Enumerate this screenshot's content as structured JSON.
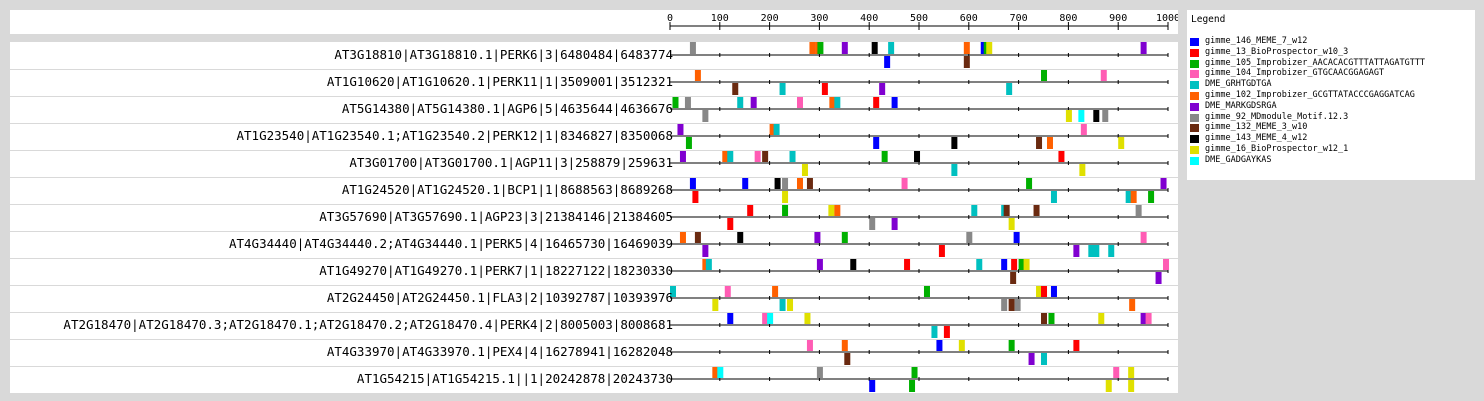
{
  "axis": {
    "min": 0,
    "max": 1000,
    "ticks": [
      0,
      100,
      200,
      300,
      400,
      500,
      600,
      700,
      800,
      900,
      1000
    ]
  },
  "legend": {
    "title": "Legend",
    "items": [
      {
        "name": "gimme_146_MEME_7_w12",
        "color": "#0000ff"
      },
      {
        "name": "gimme_13_BioProspector_w10_3",
        "color": "#ff0000"
      },
      {
        "name": "gimme_105_Improbizer_AACACACGTTTATTAGATGTTT",
        "color": "#00b000"
      },
      {
        "name": "gimme_104_Improbizer_GTGCAACGGAGAGT",
        "color": "#ff5cb4"
      },
      {
        "name": "DME_GRHTGDTGA",
        "color": "#00c0c0"
      },
      {
        "name": "gimme_102_Improbizer_GCGTTATACCCGAGGATCAG",
        "color": "#ff6000"
      },
      {
        "name": "DME_MARKGDSRGA",
        "color": "#8000d0"
      },
      {
        "name": "gimme_92_MDmodule_Motif.12.3",
        "color": "#888888"
      },
      {
        "name": "gimme_132_MEME_3_w10",
        "color": "#6a2a10"
      },
      {
        "name": "gimme_143_MEME_4_w12",
        "color": "#000000"
      },
      {
        "name": "gimme_16_BioProspector_w12_1",
        "color": "#e0e000"
      },
      {
        "name": "DME_GADGAYKAS",
        "color": "#00ffff"
      }
    ]
  },
  "sequences": [
    {
      "label": "AT3G18810|AT3G18810.1|PERK6|3|6480484|6483774",
      "top": [
        [
          40,
          7
        ],
        [
          280,
          5
        ],
        [
          292,
          5
        ],
        [
          296,
          2
        ],
        [
          345,
          6
        ],
        [
          405,
          9
        ],
        [
          438,
          4
        ],
        [
          590,
          5
        ],
        [
          624,
          0
        ],
        [
          630,
          2
        ],
        [
          635,
          10
        ],
        [
          945,
          6
        ]
      ],
      "bottom": [
        [
          430,
          0
        ],
        [
          590,
          8
        ]
      ]
    },
    {
      "label": "AT1G10620|AT1G10620.1|PERK11|1|3509001|3512321",
      "top": [
        [
          50,
          5
        ],
        [
          745,
          2
        ],
        [
          865,
          3
        ]
      ],
      "bottom": [
        [
          125,
          8
        ],
        [
          220,
          4
        ],
        [
          305,
          1
        ],
        [
          420,
          6
        ],
        [
          675,
          4
        ]
      ]
    },
    {
      "label": "AT5G14380|AT5G14380.1|AGP6|5|4635644|4636676",
      "top": [
        [
          5,
          2
        ],
        [
          30,
          7
        ],
        [
          135,
          4
        ],
        [
          162,
          6
        ],
        [
          255,
          3
        ],
        [
          320,
          5
        ],
        [
          330,
          4
        ],
        [
          408,
          1
        ],
        [
          445,
          0
        ]
      ],
      "bottom": [
        [
          65,
          7
        ],
        [
          795,
          10
        ],
        [
          820,
          11
        ],
        [
          850,
          9
        ],
        [
          868,
          7
        ]
      ]
    },
    {
      "label": "AT1G23540|AT1G23540.1;AT1G23540.2|PERK12|1|8346827|8350068",
      "top": [
        [
          15,
          6
        ],
        [
          200,
          5
        ],
        [
          208,
          4
        ],
        [
          825,
          3
        ]
      ],
      "bottom": [
        [
          32,
          2
        ],
        [
          408,
          0
        ],
        [
          565,
          9
        ],
        [
          735,
          8
        ],
        [
          757,
          5
        ],
        [
          900,
          10
        ]
      ]
    },
    {
      "label": "AT3G01700|AT3G01700.1|AGP11|3|258879|259631",
      "top": [
        [
          20,
          6
        ],
        [
          105,
          5
        ],
        [
          115,
          4
        ],
        [
          170,
          3
        ],
        [
          185,
          8
        ],
        [
          240,
          4
        ],
        [
          425,
          2
        ],
        [
          490,
          9
        ],
        [
          780,
          1
        ]
      ],
      "bottom": [
        [
          265,
          10
        ],
        [
          565,
          4
        ],
        [
          822,
          10
        ]
      ]
    },
    {
      "label": "AT1G24520|AT1G24520.1|BCP1|1|8688563|8689268",
      "top": [
        [
          40,
          0
        ],
        [
          145,
          0
        ],
        [
          210,
          9
        ],
        [
          225,
          7
        ],
        [
          255,
          5
        ],
        [
          275,
          8
        ],
        [
          465,
          3
        ],
        [
          715,
          2
        ],
        [
          985,
          6
        ]
      ],
      "bottom": [
        [
          45,
          1
        ],
        [
          225,
          10
        ],
        [
          765,
          4
        ],
        [
          915,
          4
        ],
        [
          925,
          5
        ],
        [
          960,
          2
        ]
      ]
    },
    {
      "label": "AT3G57690|AT3G57690.1|AGP23|3|21384146|21384605",
      "top": [
        [
          155,
          1
        ],
        [
          225,
          2
        ],
        [
          318,
          10
        ],
        [
          330,
          5
        ],
        [
          605,
          4
        ],
        [
          665,
          4
        ],
        [
          670,
          8
        ],
        [
          730,
          8
        ],
        [
          935,
          7
        ]
      ],
      "bottom": [
        [
          115,
          1
        ],
        [
          400,
          7
        ],
        [
          445,
          6
        ],
        [
          680,
          10
        ]
      ]
    },
    {
      "label": "AT4G34440|AT4G34440.2;AT4G34440.1|PERK5|4|16465730|16469039",
      "top": [
        [
          20,
          5
        ],
        [
          50,
          8
        ],
        [
          135,
          9
        ],
        [
          290,
          6
        ],
        [
          345,
          2
        ],
        [
          595,
          7
        ],
        [
          690,
          0
        ],
        [
          945,
          3
        ]
      ],
      "bottom": [
        [
          65,
          6
        ],
        [
          540,
          1
        ],
        [
          810,
          6
        ],
        [
          840,
          4
        ],
        [
          850,
          4
        ],
        [
          880,
          4
        ]
      ]
    },
    {
      "label": "AT1G49270|AT1G49270.1|PERK7|1|18227122|18230330",
      "top": [
        [
          65,
          5
        ],
        [
          72,
          4
        ],
        [
          295,
          6
        ],
        [
          362,
          9
        ],
        [
          470,
          1
        ],
        [
          615,
          4
        ],
        [
          665,
          0
        ],
        [
          685,
          1
        ],
        [
          700,
          2
        ],
        [
          710,
          10
        ],
        [
          990,
          3
        ]
      ],
      "bottom": [
        [
          683,
          8
        ],
        [
          975,
          6
        ]
      ]
    },
    {
      "label": "AT2G24450|AT2G24450.1|FLA3|2|10392787|10393976",
      "top": [
        [
          0,
          4
        ],
        [
          110,
          3
        ],
        [
          205,
          5
        ],
        [
          510,
          2
        ],
        [
          735,
          10
        ],
        [
          745,
          1
        ],
        [
          765,
          0
        ]
      ],
      "bottom": [
        [
          85,
          10
        ],
        [
          220,
          4
        ],
        [
          235,
          10
        ],
        [
          665,
          7
        ],
        [
          680,
          8
        ],
        [
          692,
          7
        ],
        [
          922,
          5
        ]
      ]
    },
    {
      "label": "AT2G18470|AT2G18470.3;AT2G18470.1;AT2G18470.2;AT2G18470.4|PERK4|2|8005003|8008681",
      "top": [
        [
          115,
          0
        ],
        [
          185,
          3
        ],
        [
          195,
          11
        ],
        [
          270,
          10
        ],
        [
          745,
          8
        ],
        [
          760,
          2
        ],
        [
          860,
          10
        ],
        [
          945,
          6
        ],
        [
          955,
          3
        ]
      ],
      "bottom": [
        [
          525,
          4
        ],
        [
          550,
          1
        ]
      ]
    },
    {
      "label": "AT4G33970|AT4G33970.1|PEX4|4|16278941|16282048",
      "top": [
        [
          275,
          3
        ],
        [
          345,
          5
        ],
        [
          535,
          0
        ],
        [
          580,
          10
        ],
        [
          680,
          2
        ],
        [
          810,
          1
        ]
      ],
      "bottom": [
        [
          350,
          8
        ],
        [
          720,
          6
        ],
        [
          745,
          4
        ]
      ]
    },
    {
      "label": "AT1G54215|AT1G54215.1||1|20242878|20243730",
      "top": [
        [
          85,
          5
        ],
        [
          95,
          11
        ],
        [
          295,
          7
        ],
        [
          485,
          2
        ],
        [
          890,
          3
        ],
        [
          920,
          10
        ]
      ],
      "bottom": [
        [
          400,
          0
        ],
        [
          480,
          2
        ],
        [
          875,
          10
        ],
        [
          920,
          10
        ]
      ]
    }
  ]
}
